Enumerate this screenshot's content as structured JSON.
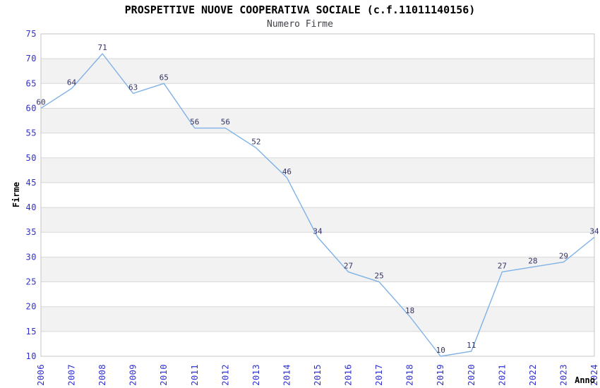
{
  "chart_data": {
    "type": "line",
    "title": "PROSPETTIVE NUOVE COOPERATIVA SOCIALE (c.f.11011140156)",
    "subtitle": "Numero Firme",
    "xlabel": "Anno",
    "ylabel": "Firme",
    "categories": [
      "2006",
      "2007",
      "2008",
      "2009",
      "2010",
      "2011",
      "2012",
      "2013",
      "2014",
      "2015",
      "2016",
      "2017",
      "2018",
      "2019",
      "2020",
      "2021",
      "2022",
      "2023",
      "2024"
    ],
    "series": [
      {
        "name": "Numero Firme",
        "values": [
          60,
          64,
          71,
          63,
          65,
          56,
          56,
          52,
          46,
          34,
          27,
          25,
          18,
          10,
          11,
          27,
          28,
          29,
          34
        ]
      }
    ],
    "ylim": [
      10,
      75
    ],
    "ytick_step": 5,
    "yticks": [
      75,
      70,
      65,
      60,
      55,
      50,
      45,
      40,
      35,
      30,
      25,
      20,
      15,
      10
    ],
    "grid": true,
    "bands_alternating": true,
    "legend": "none",
    "colors": {
      "line": "#7fb1e6",
      "data_label": "#333366",
      "tick_label": "#2f2fd0",
      "grid": "#d9d9d9",
      "band": "#f2f2f2",
      "plot_border": "#c6c6c6",
      "title": "#000000",
      "subtitle": "#40404a",
      "background": "#ffffff"
    }
  }
}
